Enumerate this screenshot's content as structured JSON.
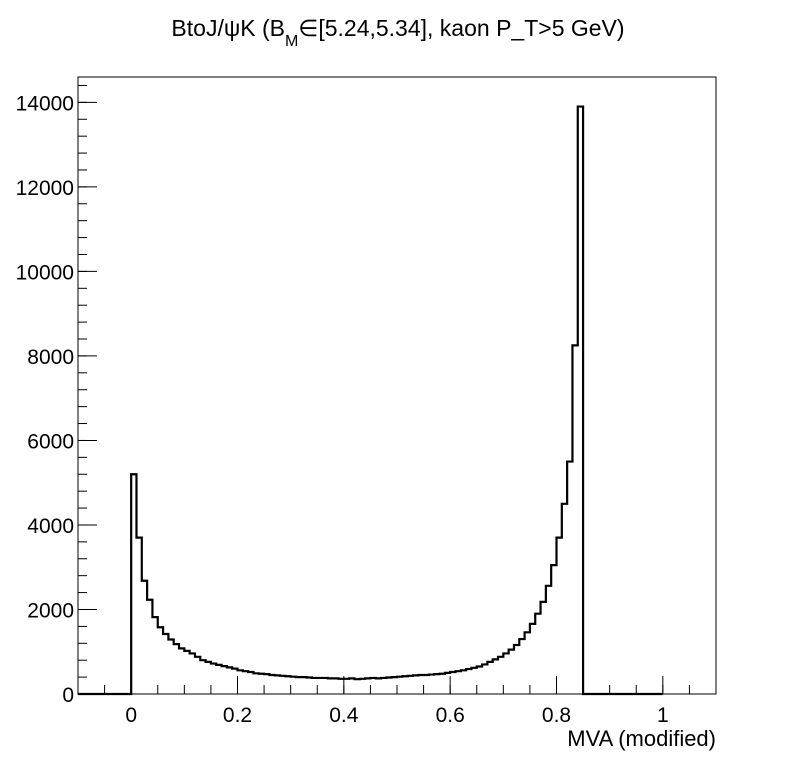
{
  "chart_data": {
    "type": "histogram",
    "title_parts": {
      "pre": "BtoJ/ψK (B",
      "sub": "M",
      "post": "∈[5.24,5.34], kaon P_T>5 GeV)"
    },
    "xlabel": "MVA (modified)",
    "ylabel": "",
    "xlim": [
      -0.1,
      1.1
    ],
    "ylim": [
      0,
      14600
    ],
    "x_ticks": [
      {
        "v": 0,
        "label": "0"
      },
      {
        "v": 0.2,
        "label": "0.2"
      },
      {
        "v": 0.4,
        "label": "0.4"
      },
      {
        "v": 0.6,
        "label": "0.6"
      },
      {
        "v": 0.8,
        "label": "0.8"
      },
      {
        "v": 1,
        "label": "1"
      }
    ],
    "y_ticks": [
      {
        "v": 0,
        "label": "0"
      },
      {
        "v": 2000,
        "label": "2000"
      },
      {
        "v": 4000,
        "label": "4000"
      },
      {
        "v": 6000,
        "label": "6000"
      },
      {
        "v": 8000,
        "label": "8000"
      },
      {
        "v": 10000,
        "label": "10000"
      },
      {
        "v": 12000,
        "label": "12000"
      },
      {
        "v": 14000,
        "label": "14000"
      }
    ],
    "x_minor_step": 0.05,
    "y_minor_step": 400,
    "bin_width": 0.01,
    "bin_start": -0.1,
    "series": [
      {
        "values": [
          0,
          0,
          0,
          0,
          0,
          0,
          0,
          0,
          0,
          0,
          5200,
          3700,
          2680,
          2230,
          1820,
          1580,
          1420,
          1290,
          1180,
          1080,
          1020,
          960,
          880,
          800,
          760,
          720,
          690,
          660,
          630,
          600,
          560,
          540,
          520,
          490,
          480,
          470,
          450,
          440,
          430,
          420,
          410,
          400,
          400,
          390,
          380,
          380,
          380,
          370,
          370,
          360,
          360,
          370,
          350,
          360,
          370,
          380,
          370,
          380,
          390,
          400,
          410,
          420,
          430,
          440,
          450,
          450,
          460,
          470,
          480,
          500,
          520,
          540,
          560,
          590,
          620,
          650,
          700,
          760,
          820,
          880,
          960,
          1050,
          1160,
          1300,
          1460,
          1660,
          1900,
          2180,
          2560,
          3050,
          3700,
          4500,
          5500,
          8250,
          13900,
          0,
          0,
          0,
          0,
          0,
          0,
          0,
          0,
          0,
          0,
          0,
          0,
          0,
          0,
          0
        ]
      }
    ]
  }
}
